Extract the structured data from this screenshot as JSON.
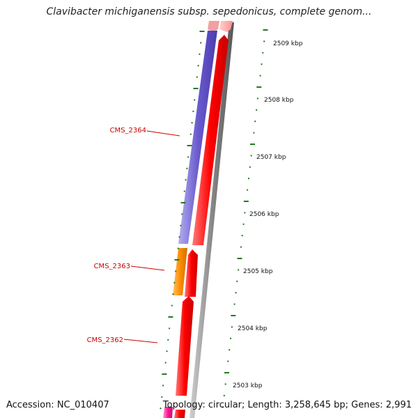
{
  "map": {
    "title": "Clavibacter michiganensis subsp. sepedonicus, complete genom...",
    "accession_text": "Accession: NC_010407",
    "info_text": "Topology: circular; Length: 3,258,645 bp; Genes: 2,991"
  },
  "ruler": {
    "unit": "kbp",
    "ticks": [
      {
        "label": "2509 kbp"
      },
      {
        "label": "2508 kbp"
      },
      {
        "label": "2507 kbp"
      },
      {
        "label": "2506 kbp"
      },
      {
        "label": "2505 kbp"
      },
      {
        "label": "2504 kbp"
      },
      {
        "label": "2503 kbp"
      }
    ]
  },
  "genes": [
    {
      "label": "CMS_2364",
      "color": "#6a5acd"
    },
    {
      "label": "CMS_2363",
      "color": "#ff8c00"
    },
    {
      "label": "CMS_2362",
      "color": "#ff0000"
    }
  ],
  "colors": {
    "cds_track": "#ff0000",
    "backbone": "#888888",
    "tick": "#1f7a1f",
    "label": "#cc0000"
  }
}
